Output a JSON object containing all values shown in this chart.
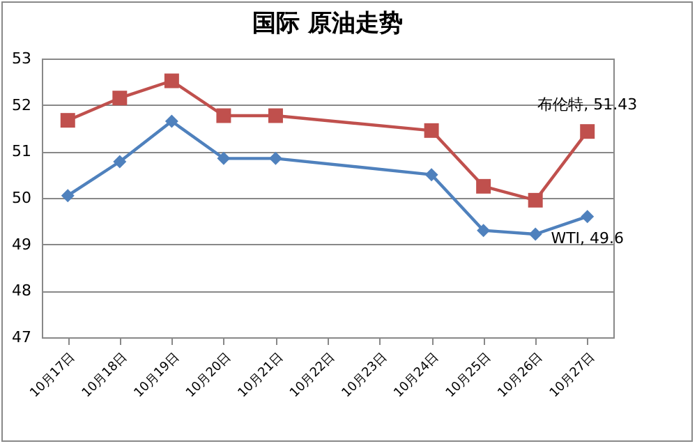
{
  "chart_data": {
    "type": "line",
    "title": "国际 原油走势",
    "categories": [
      "10月17日",
      "10月18日",
      "10月19日",
      "10月20日",
      "10月21日",
      "10月22日",
      "10月23日",
      "10月24日",
      "10月25日",
      "10月26日",
      "10月27日"
    ],
    "series": [
      {
        "color": "#c0504d",
        "marker": "square",
        "values": [
          51.67,
          52.15,
          52.52,
          51.77,
          51.77,
          null,
          null,
          51.45,
          50.25,
          49.95,
          51.43
        ]
      },
      {
        "color": "#4f81bd",
        "marker": "diamond",
        "values": [
          50.05,
          50.78,
          51.65,
          50.85,
          50.85,
          null,
          null,
          50.5,
          49.3,
          49.22,
          49.6
        ]
      }
    ],
    "ylim": [
      47,
      53
    ],
    "yticks": [
      47,
      48,
      49,
      50,
      51,
      52,
      53
    ],
    "grid": "y",
    "annotations": [
      {
        "text": "布伦特, 51.43",
        "x": "10月27日",
        "y": 51.43
      },
      {
        "text": "WTI, 49.6",
        "x": "10月27日",
        "y": 49.6
      }
    ]
  }
}
